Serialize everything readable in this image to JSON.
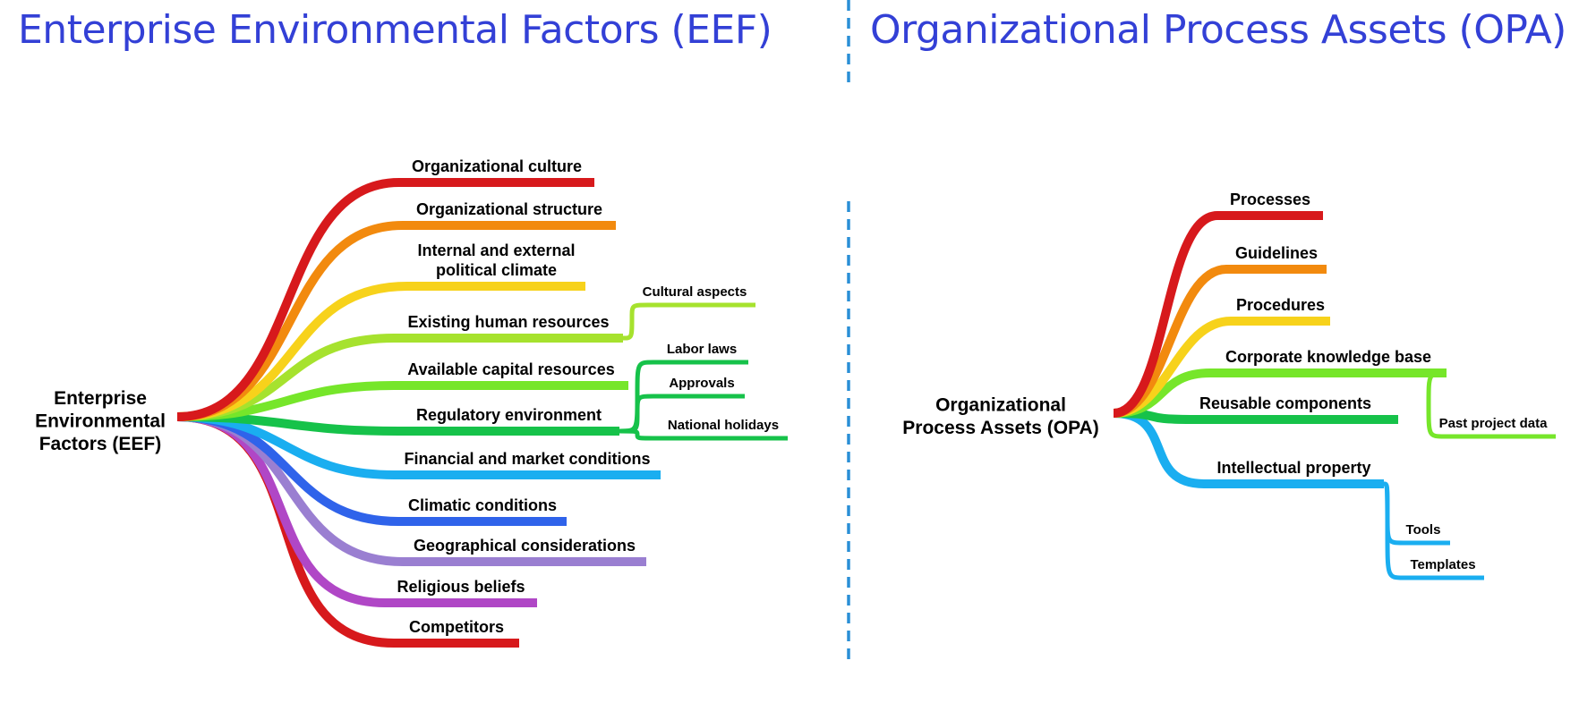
{
  "headings": {
    "eef": "Enterprise Environmental Factors (EEF)",
    "opa": "Organizational Process Assets (OPA)"
  },
  "divider_color": "#2a8fd6",
  "heading_color": "#3340d6",
  "eef": {
    "root": [
      "Enterprise",
      "Environmental",
      "Factors (EEF)"
    ],
    "branches": [
      {
        "label": [
          "Organizational culture"
        ],
        "color": "#d7191c"
      },
      {
        "label": [
          "Organizational structure"
        ],
        "color": "#f28a0e"
      },
      {
        "label": [
          "Internal and external",
          "political climate"
        ],
        "color": "#f7d21b"
      },
      {
        "label": [
          "Existing human resources"
        ],
        "color": "#a6e22e",
        "children": [
          {
            "label": "Cultural aspects",
            "color": "#a6e22e"
          }
        ]
      },
      {
        "label": [
          "Available capital resources"
        ],
        "color": "#76e62a"
      },
      {
        "label": [
          "Regulatory environment"
        ],
        "color": "#16c24a",
        "children": [
          {
            "label": "Labor laws",
            "color": "#16c24a"
          },
          {
            "label": "Approvals",
            "color": "#16c24a"
          },
          {
            "label": "National holidays",
            "color": "#16c24a"
          }
        ]
      },
      {
        "label": [
          "Financial and market conditions"
        ],
        "color": "#1aaef0"
      },
      {
        "label": [
          "Climatic conditions"
        ],
        "color": "#2f63ea"
      },
      {
        "label": [
          "Geographical considerations"
        ],
        "color": "#9a7fd1"
      },
      {
        "label": [
          "Religious beliefs"
        ],
        "color": "#b047c6"
      },
      {
        "label": [
          "Competitors"
        ],
        "color": "#d7191c"
      }
    ]
  },
  "opa": {
    "root": [
      "Organizational",
      "Process Assets (OPA)"
    ],
    "branches": [
      {
        "label": [
          "Processes"
        ],
        "color": "#d7191c"
      },
      {
        "label": [
          "Guidelines"
        ],
        "color": "#f28a0e"
      },
      {
        "label": [
          "Procedures"
        ],
        "color": "#f7d21b"
      },
      {
        "label": [
          "Corporate knowledge base"
        ],
        "color": "#76e62a",
        "children": [
          {
            "label": "Past project data",
            "color": "#76e62a"
          }
        ]
      },
      {
        "label": [
          "Reusable components"
        ],
        "color": "#16c24a"
      },
      {
        "label": [
          "Intellectual property"
        ],
        "color": "#1aaef0",
        "children": [
          {
            "label": "Tools",
            "color": "#1aaef0"
          },
          {
            "label": "Templates",
            "color": "#1aaef0"
          }
        ]
      }
    ]
  }
}
